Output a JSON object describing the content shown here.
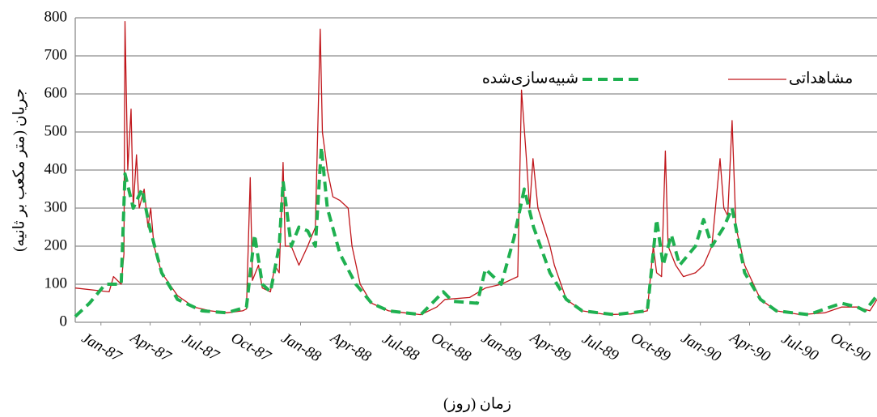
{
  "chart_data": {
    "type": "line",
    "y_label": "جریان (متر مکعب بر ثانیه)",
    "x_label": "زمان (روز)",
    "xlim": [
      -47,
      1419
    ],
    "xticks": [
      {
        "value": 0,
        "label": "Jan-87"
      },
      {
        "value": 90,
        "label": "Apr-87"
      },
      {
        "value": 181,
        "label": "Jul-87"
      },
      {
        "value": 273,
        "label": "Oct-87"
      },
      {
        "value": 365,
        "label": "Jan-88"
      },
      {
        "value": 456,
        "label": "Apr-88"
      },
      {
        "value": 547,
        "label": "Jul-88"
      },
      {
        "value": 639,
        "label": "Oct-88"
      },
      {
        "value": 731,
        "label": "Jan-89"
      },
      {
        "value": 821,
        "label": "Apr-89"
      },
      {
        "value": 912,
        "label": "Jul-89"
      },
      {
        "value": 1004,
        "label": "Oct-89"
      },
      {
        "value": 1096,
        "label": "Jan-90"
      },
      {
        "value": 1186,
        "label": "Apr-90"
      },
      {
        "value": 1277,
        "label": "Jul-90"
      },
      {
        "value": 1369,
        "label": "Oct-90"
      }
    ],
    "ylim": [
      0,
      800
    ],
    "yticks": [
      0,
      100,
      200,
      300,
      400,
      500,
      600,
      700,
      800
    ],
    "grid": true,
    "legend": "top-right",
    "series": [
      {
        "name": "مشاهداتی",
        "color": "#c0161b",
        "dash": false,
        "x": [
          -47,
          15,
          23,
          37,
          42,
          44,
          49,
          55,
          59,
          65,
          70,
          79,
          86,
          91,
          97,
          111,
          140,
          170,
          200,
          230,
          259,
          266,
          273,
          277,
          288,
          295,
          310,
          318,
          326,
          333,
          337,
          348,
          362,
          378,
          392,
          401,
          405,
          414,
          424,
          437,
          452,
          459,
          474,
          495,
          526,
          555,
          585,
          614,
          629,
          674,
          703,
          732,
          762,
          769,
          777,
          784,
          790,
          799,
          821,
          829,
          851,
          880,
          925,
          969,
          999,
          1010,
          1016,
          1025,
          1032,
          1037,
          1051,
          1065,
          1087,
          1102,
          1117,
          1132,
          1139,
          1146,
          1154,
          1161,
          1177,
          1206,
          1235,
          1280,
          1324,
          1354,
          1383,
          1406,
          1419
        ],
        "values": [
          90,
          80,
          120,
          100,
          180,
          790,
          400,
          560,
          300,
          440,
          300,
          350,
          250,
          300,
          200,
          130,
          70,
          40,
          30,
          25,
          30,
          35,
          380,
          110,
          150,
          90,
          80,
          150,
          130,
          420,
          200,
          200,
          150,
          200,
          250,
          770,
          500,
          400,
          330,
          320,
          300,
          200,
          100,
          50,
          30,
          25,
          20,
          40,
          60,
          65,
          90,
          100,
          120,
          610,
          450,
          300,
          430,
          300,
          200,
          150,
          60,
          30,
          20,
          22,
          30,
          200,
          130,
          120,
          450,
          200,
          150,
          120,
          130,
          150,
          200,
          430,
          300,
          280,
          530,
          250,
          150,
          60,
          30,
          20,
          25,
          40,
          40,
          30,
          60
        ]
      },
      {
        "name": "شبیه‌سازی‌شده",
        "color": "#1fb050",
        "dash": true,
        "x": [
          -47,
          -21,
          8,
          37,
          44,
          59,
          75,
          89,
          111,
          140,
          185,
          230,
          266,
          281,
          295,
          310,
          326,
          333,
          348,
          362,
          378,
          392,
          403,
          414,
          437,
          466,
          495,
          526,
          585,
          626,
          643,
          688,
          703,
          732,
          755,
          774,
          791,
          821,
          851,
          880,
          939,
          999,
          1016,
          1028,
          1043,
          1058,
          1087,
          1102,
          1117,
          1139,
          1154,
          1177,
          1206,
          1235,
          1294,
          1354,
          1383,
          1397,
          1419
        ],
        "values": [
          15,
          50,
          100,
          100,
          390,
          300,
          350,
          250,
          130,
          60,
          30,
          25,
          40,
          230,
          100,
          80,
          200,
          370,
          200,
          250,
          240,
          200,
          460,
          300,
          180,
          100,
          50,
          30,
          20,
          80,
          55,
          50,
          140,
          100,
          220,
          350,
          250,
          130,
          60,
          30,
          20,
          30,
          270,
          150,
          230,
          150,
          200,
          270,
          200,
          250,
          300,
          130,
          60,
          30,
          20,
          50,
          40,
          30,
          70
        ]
      }
    ]
  }
}
